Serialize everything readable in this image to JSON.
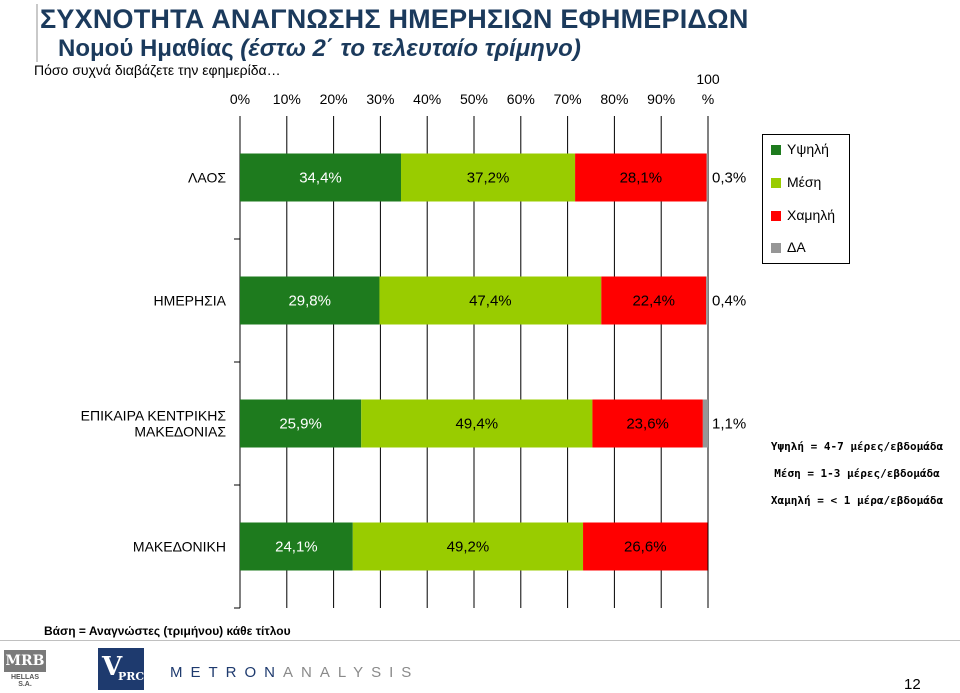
{
  "title": {
    "line1": "ΣΥΧΝΟΤΗΤΑ ΑΝΑΓΝΩΣΗΣ ΗΜΕΡΗΣΙΩΝ ΕΦΗΜΕΡΙΔΩΝ",
    "line2_regular": "Νομού Ημαθίας",
    "line2_italic": "(έστω 2΄ το τελευταίο τρίμηνο)"
  },
  "question": "Πόσο συχνά διαβάζετε την εφημερίδα…",
  "colors": {
    "high": "#1e7b1e",
    "medium": "#99cc00",
    "low": "#ff0000",
    "na": "#969696",
    "title": "#1b3a5c"
  },
  "chart_data": {
    "type": "bar",
    "orientation": "horizontal",
    "stacked": true,
    "x_ticks": [
      "0%",
      "10%",
      "20%",
      "30%",
      "40%",
      "50%",
      "60%",
      "70%",
      "80%",
      "90%",
      "100 %"
    ],
    "xlim": [
      0,
      100
    ],
    "categories": [
      "ΛΑΟΣ",
      "ΗΜΕΡΗΣΙΑ",
      "ΕΠΙΚΑΙΡΑ ΚΕΝΤΡΙΚΗΣ ΜΑΚΕΔΟΝΙΑΣ",
      "ΜΑΚΕΔΟΝΙΚΗ"
    ],
    "series": [
      {
        "name": "Υψηλή",
        "values": [
          34.4,
          29.8,
          25.9,
          24.1
        ],
        "labels": [
          "34,4%",
          "29,8%",
          "25,9%",
          "24,1%"
        ]
      },
      {
        "name": "Μέση",
        "values": [
          37.2,
          47.4,
          49.4,
          49.2
        ],
        "labels": [
          "37,2%",
          "47,4%",
          "49,4%",
          "49,2%"
        ]
      },
      {
        "name": "Χαμηλή",
        "values": [
          28.1,
          22.4,
          23.6,
          26.6
        ],
        "labels": [
          "28,1%",
          "22,4%",
          "23,6%",
          "26,6%"
        ]
      },
      {
        "name": "ΔΑ",
        "values": [
          0.3,
          0.4,
          1.1,
          0
        ],
        "labels": [
          "0,3%",
          "0,4%",
          "1,1%",
          ""
        ]
      }
    ],
    "legend_placement": "right",
    "grid": true
  },
  "definitions": [
    "Υψηλή = 4-7 μέρες/εβδομάδα",
    "Μέση = 1-3 μέρες/εβδομάδα",
    "Χαμηλή = < 1 μέρα/εβδομάδα"
  ],
  "base_note": "Βάση = Αναγνώστες (τριμήνου) κάθε τίτλου",
  "footer": {
    "mrb_logo": "MRB",
    "mrb_sub": "HELLAS S.A.",
    "vprc_logo_v": "V",
    "vprc_logo_rest": "PRC",
    "metron_part1": "METRON",
    "metron_part2": "ANALYSIS",
    "page_number": "12"
  }
}
